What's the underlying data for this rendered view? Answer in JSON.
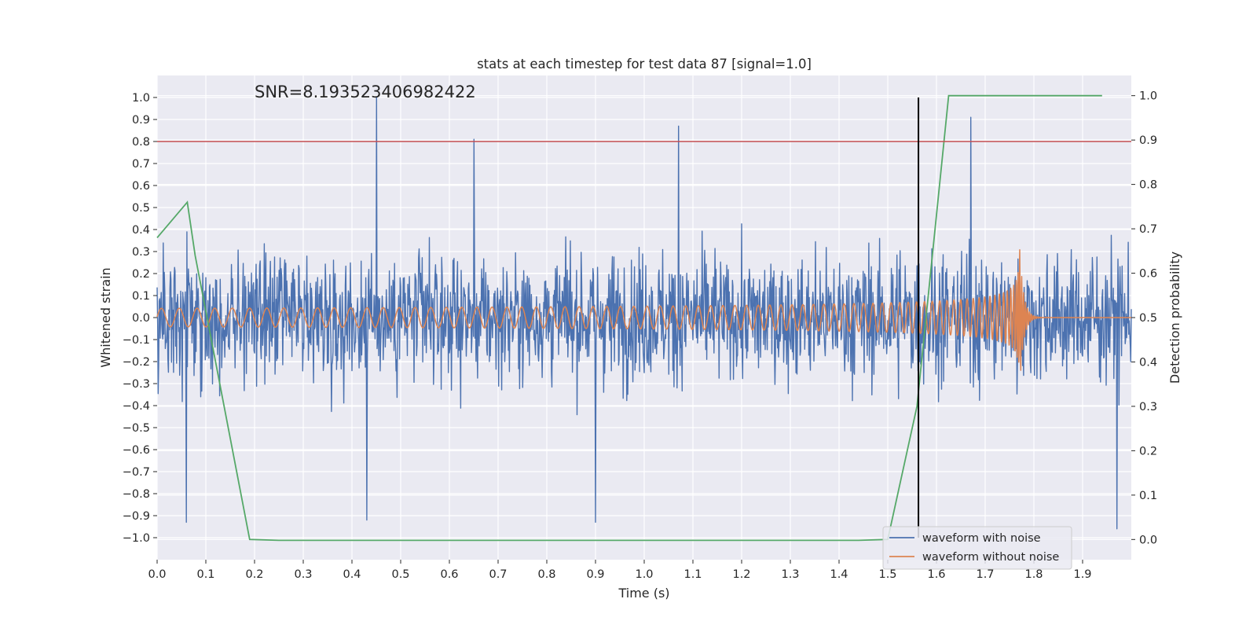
{
  "chart_data": {
    "type": "line",
    "title": "stats at each timestep for test data 87 [signal=1.0]",
    "annotation": "SNR=8.193523406982422",
    "xlabel": "Time (s)",
    "ylabel": "Whitened strain",
    "y2label": "Detection probability",
    "xlim": [
      0.0,
      2.0
    ],
    "ylim": [
      -1.1,
      1.1
    ],
    "y2lim": [
      -0.0455,
      1.0455
    ],
    "xticks": [
      "0.0",
      "0.1",
      "0.2",
      "0.3",
      "0.4",
      "0.5",
      "0.6",
      "0.7",
      "0.8",
      "0.9",
      "1.0",
      "1.1",
      "1.2",
      "1.3",
      "1.4",
      "1.5",
      "1.6",
      "1.7",
      "1.8",
      "1.9"
    ],
    "yticks": [
      "1.0",
      "0.9",
      "0.8",
      "0.7",
      "0.6",
      "0.5",
      "0.4",
      "0.3",
      "0.2",
      "0.1",
      "0.0",
      "−0.1",
      "−0.2",
      "−0.3",
      "−0.4",
      "−0.5",
      "−0.6",
      "−0.7",
      "−0.8",
      "−0.9",
      "−1.0"
    ],
    "y2ticks": [
      "1.0",
      "0.9",
      "0.8",
      "0.7",
      "0.6",
      "0.5",
      "0.4",
      "0.3",
      "0.2",
      "0.1",
      "0.0"
    ],
    "grid": true,
    "legend_position": "lower-right",
    "colors": {
      "noisy": "#4c72b0",
      "clean": "#dd8452",
      "probability": "#55a868",
      "threshold": "#c44e52",
      "marker": "#000000",
      "background": "#eaeaf2"
    },
    "series": [
      {
        "name": "waveform with noise",
        "note": "dense noisy strain, amplitude mostly within about ±0.6, peaks near 1.0 at t=0.45 and about 0.87 at t=1.07, minima near −0.93 at t=0.06, 0.43, 0.9",
        "peaks": [
          [
            0.45,
            1.0
          ],
          [
            1.07,
            0.87
          ],
          [
            0.65,
            0.81
          ],
          [
            1.67,
            0.91
          ],
          [
            0.06,
            -0.93
          ],
          [
            0.43,
            -0.92
          ],
          [
            0.9,
            -0.93
          ],
          [
            1.97,
            -0.96
          ]
        ]
      },
      {
        "name": "waveform without noise",
        "note": "chirp waveform, amplitude ~0.04 at start growing to ~0.35 at merger near t=1.77, then ringdown to 0",
        "merger_time": 1.77,
        "peak_amplitude": 0.35
      },
      {
        "name": "",
        "axis": "right",
        "x": [
          0.0,
          0.062,
          0.078,
          0.19,
          0.25,
          0.5,
          1.0,
          1.44,
          1.5,
          1.56,
          1.625,
          1.7,
          1.8,
          1.94
        ],
        "values": [
          0.68,
          0.76,
          0.64,
          0.0,
          -0.002,
          -0.002,
          -0.002,
          -0.002,
          0.0,
          0.3,
          1.0,
          1.0,
          1.0,
          1.0
        ]
      }
    ],
    "threshold_y": 0.8,
    "marker_x": 1.563
  }
}
